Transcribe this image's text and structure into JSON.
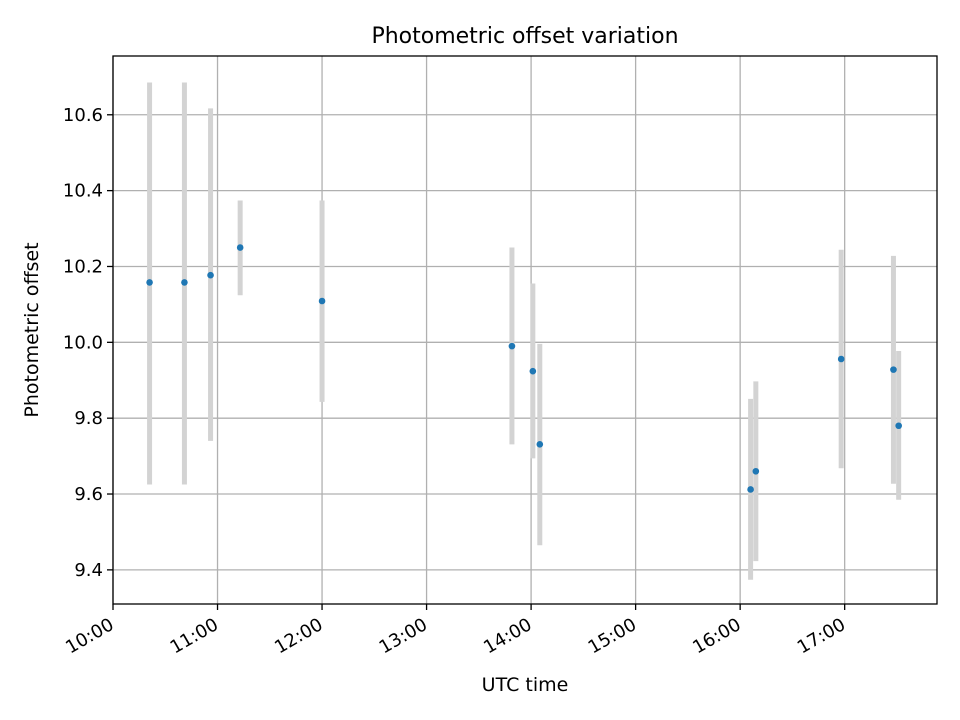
{
  "chart_data": {
    "type": "scatter",
    "title": "Photometric offset variation",
    "xlabel": "UTC time",
    "ylabel": "Photometric offset",
    "x_ticks": [
      "10:00",
      "11:00",
      "12:00",
      "13:00",
      "14:00",
      "15:00",
      "16:00",
      "17:00"
    ],
    "y_ticks": [
      "9.4",
      "9.6",
      "9.8",
      "10.0",
      "10.2",
      "10.4",
      "10.6"
    ],
    "xlim": [
      "10:00",
      "17:53"
    ],
    "ylim": [
      9.31,
      10.755
    ],
    "grid": true,
    "marker_color": "#1f77b4",
    "errorbar_color": "#d3d3d3",
    "points": [
      {
        "x": "10:21",
        "y": 10.158,
        "y_low": 9.625,
        "y_high": 10.685
      },
      {
        "x": "10:41",
        "y": 10.158,
        "y_low": 9.625,
        "y_high": 10.685
      },
      {
        "x": "10:56",
        "y": 10.177,
        "y_low": 9.74,
        "y_high": 10.617
      },
      {
        "x": "11:13",
        "y": 10.25,
        "y_low": 10.124,
        "y_high": 10.374
      },
      {
        "x": "12:00",
        "y": 10.109,
        "y_low": 9.843,
        "y_high": 10.374
      },
      {
        "x": "13:49",
        "y": 9.99,
        "y_low": 9.731,
        "y_high": 10.25
      },
      {
        "x": "14:01",
        "y": 9.924,
        "y_low": 9.694,
        "y_high": 10.155
      },
      {
        "x": "14:05",
        "y": 9.731,
        "y_low": 9.465,
        "y_high": 9.996
      },
      {
        "x": "16:06",
        "y": 9.612,
        "y_low": 9.374,
        "y_high": 9.851
      },
      {
        "x": "16:09",
        "y": 9.66,
        "y_low": 9.423,
        "y_high": 9.897
      },
      {
        "x": "16:58",
        "y": 9.956,
        "y_low": 9.668,
        "y_high": 10.244
      },
      {
        "x": "17:28",
        "y": 9.928,
        "y_low": 9.627,
        "y_high": 10.228
      },
      {
        "x": "17:31",
        "y": 9.78,
        "y_low": 9.585,
        "y_high": 9.977
      }
    ]
  }
}
